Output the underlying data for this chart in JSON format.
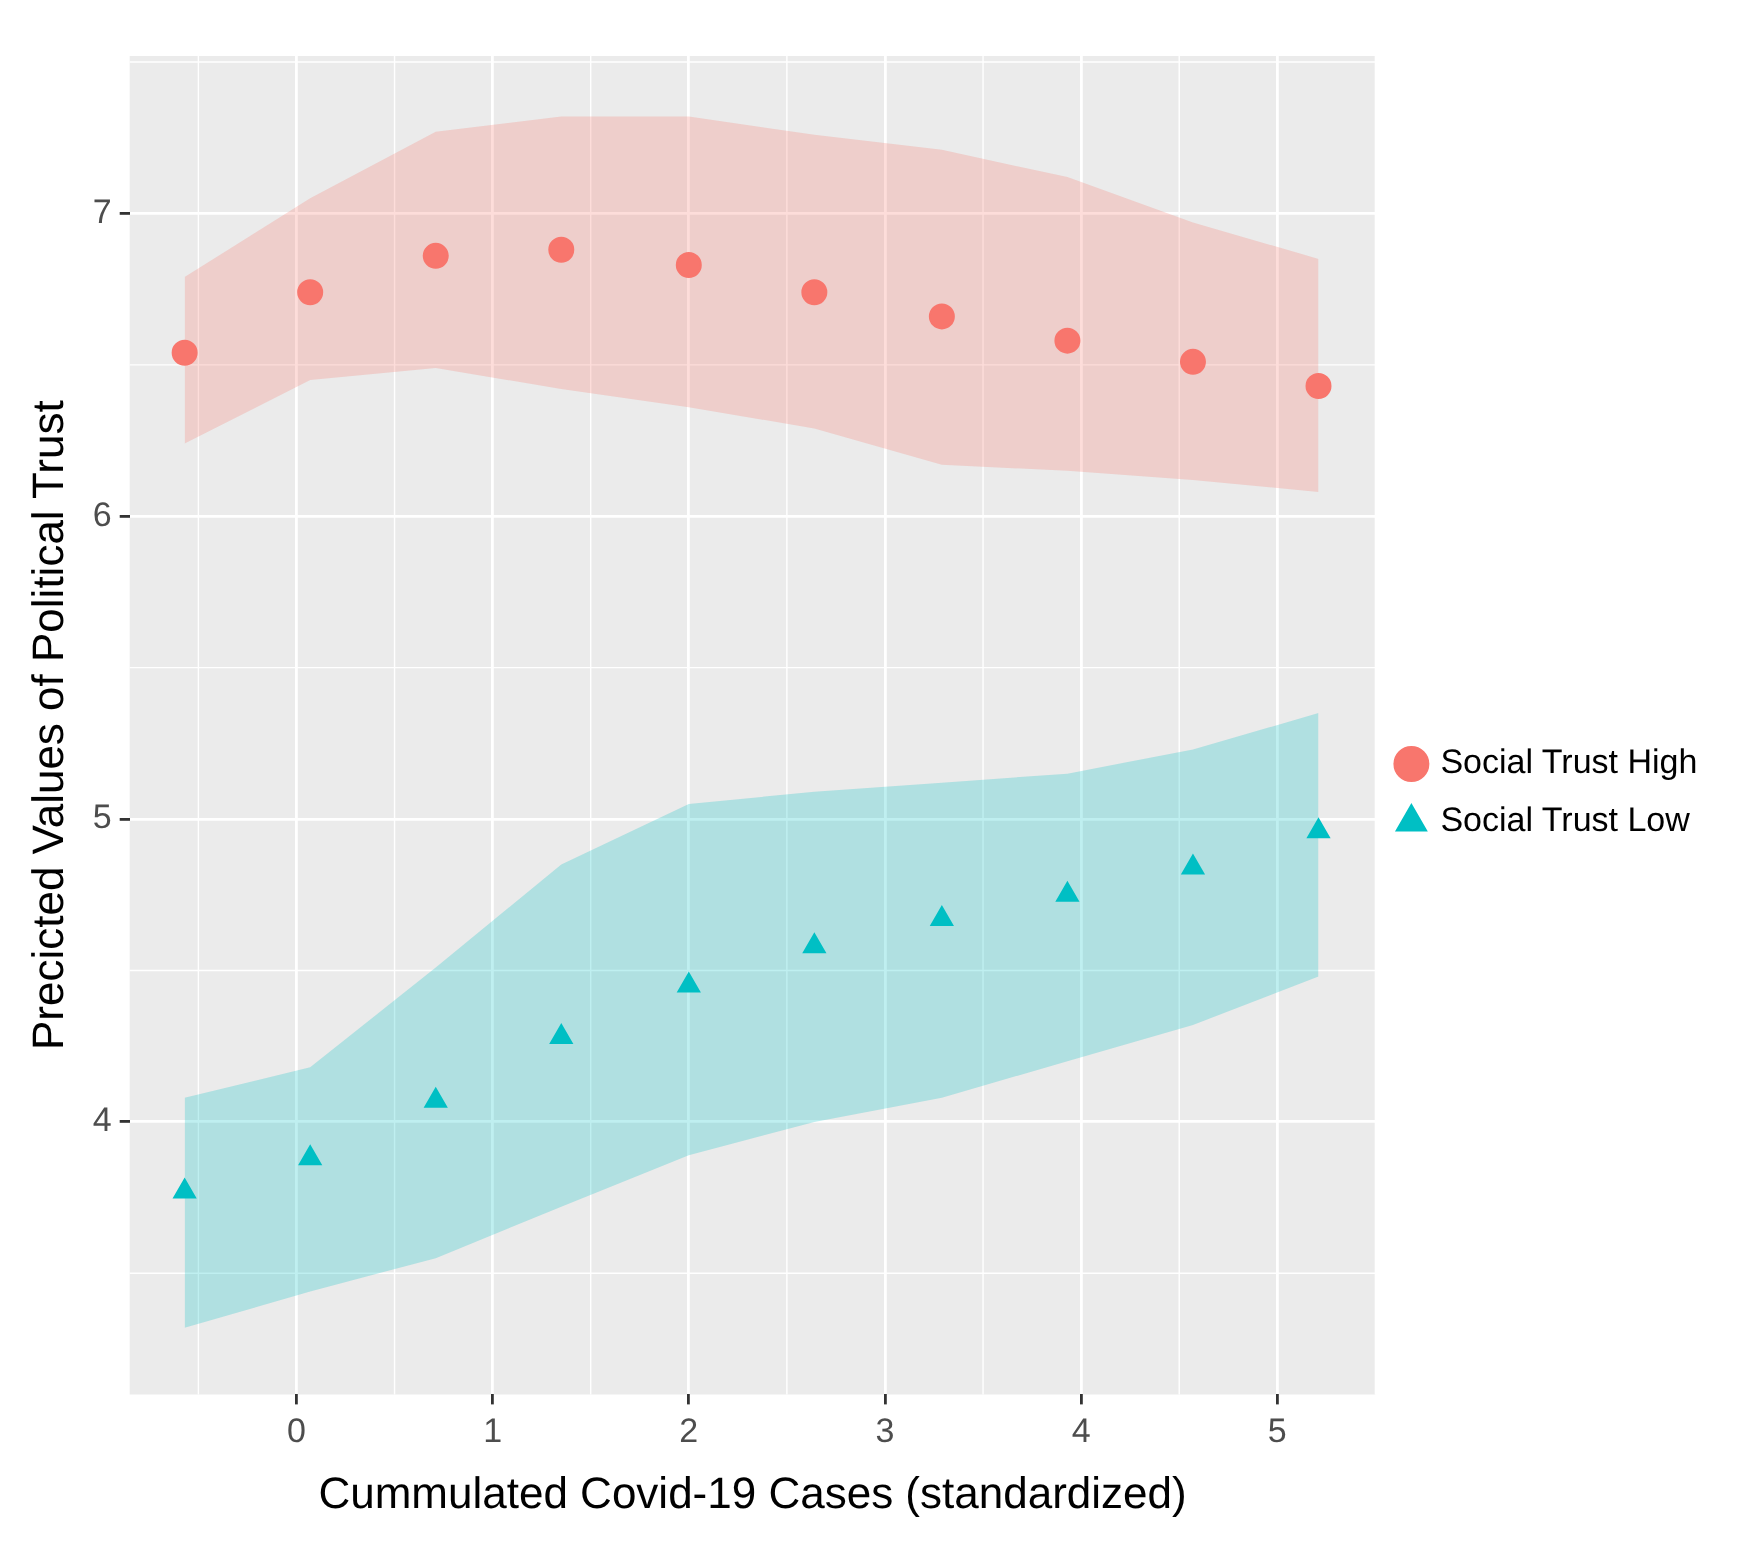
{
  "chart_data": {
    "type": "scatter",
    "xlabel": "Cummulated Covid-19 Cases (standardized)",
    "ylabel": "Precicted Values of Political Trust",
    "x": [
      -0.57,
      0.07,
      0.71,
      1.35,
      2.0,
      2.64,
      3.29,
      3.93,
      4.57,
      5.21
    ],
    "series": [
      {
        "name": "Social Trust High",
        "color": "#f8766d",
        "marker": "circle",
        "values": [
          6.54,
          6.74,
          6.86,
          6.88,
          6.83,
          6.74,
          6.66,
          6.58,
          6.51,
          6.43
        ],
        "lower": [
          6.24,
          6.45,
          6.49,
          6.42,
          6.36,
          6.29,
          6.17,
          6.15,
          6.12,
          6.08
        ],
        "upper": [
          6.79,
          7.05,
          7.27,
          7.32,
          7.32,
          7.26,
          7.21,
          7.12,
          6.97,
          6.85
        ]
      },
      {
        "name": "Social Trust Low",
        "color": "#00bfc4",
        "marker": "triangle",
        "values": [
          3.77,
          3.88,
          4.07,
          4.28,
          4.45,
          4.58,
          4.67,
          4.75,
          4.84,
          4.96
        ],
        "lower": [
          3.32,
          3.44,
          3.55,
          3.72,
          3.89,
          4.0,
          4.08,
          4.2,
          4.32,
          4.48
        ],
        "upper": [
          4.08,
          4.18,
          4.51,
          4.85,
          5.05,
          5.09,
          5.12,
          5.15,
          5.23,
          5.35
        ]
      }
    ],
    "xlim": [
      -0.85,
      5.5
    ],
    "xticks": [
      0,
      1,
      2,
      3,
      4,
      5
    ],
    "ylim": [
      3.1,
      7.52
    ],
    "yticks": [
      4,
      5,
      6,
      7
    ],
    "grid": true,
    "legend": "right"
  }
}
